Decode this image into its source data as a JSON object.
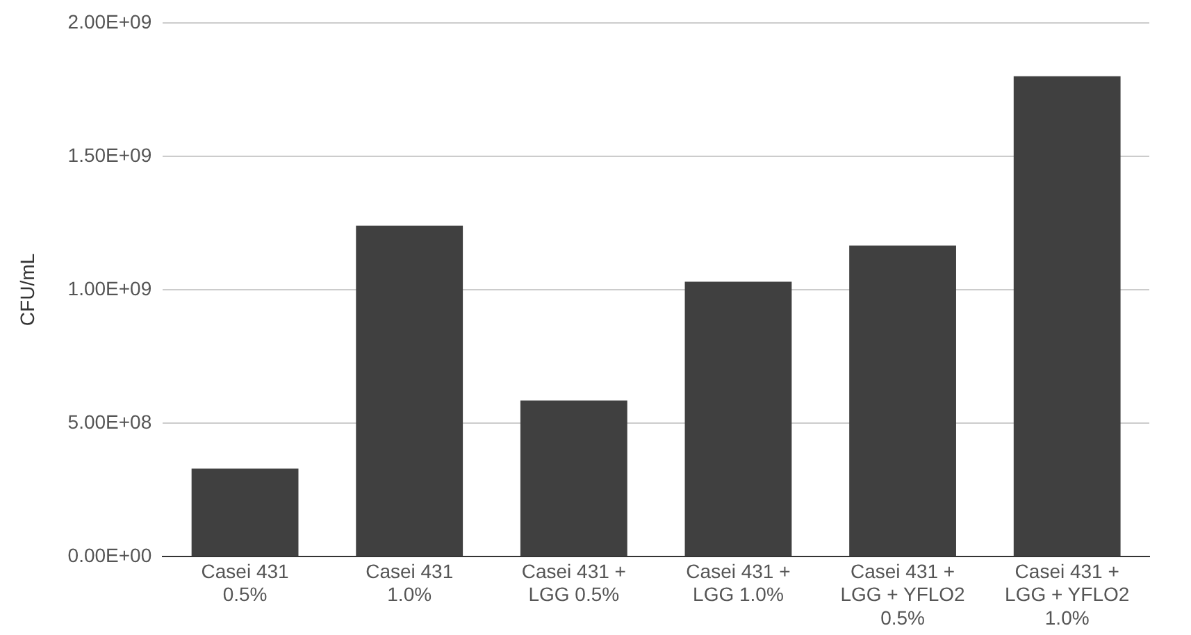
{
  "chart_data": {
    "type": "bar",
    "ylabel": "CFU/mL",
    "categories": [
      "Casei 431 0.5%",
      "Casei 431 1.0%",
      "Casei 431 + LGG 0.5%",
      "Casei 431 + LGG 1.0%",
      "Casei 431 + LGG + YFLO2 0.5%",
      "Casei 431 + LGG + YFLO2 1.0%"
    ],
    "values": [
      330000000,
      1240000000,
      585000000,
      1030000000,
      1165000000,
      1800000000
    ],
    "color": "#404040",
    "ylim": [
      0,
      2000000000
    ],
    "yticks": [
      {
        "value": 0,
        "label": "0.00E+00"
      },
      {
        "value": 500000000,
        "label": "5.00E+08"
      },
      {
        "value": 1000000000,
        "label": "1.00E+09"
      },
      {
        "value": 1500000000,
        "label": "1.50E+09"
      },
      {
        "value": 2000000000,
        "label": "2.00E+09"
      }
    ],
    "grid": "y"
  }
}
